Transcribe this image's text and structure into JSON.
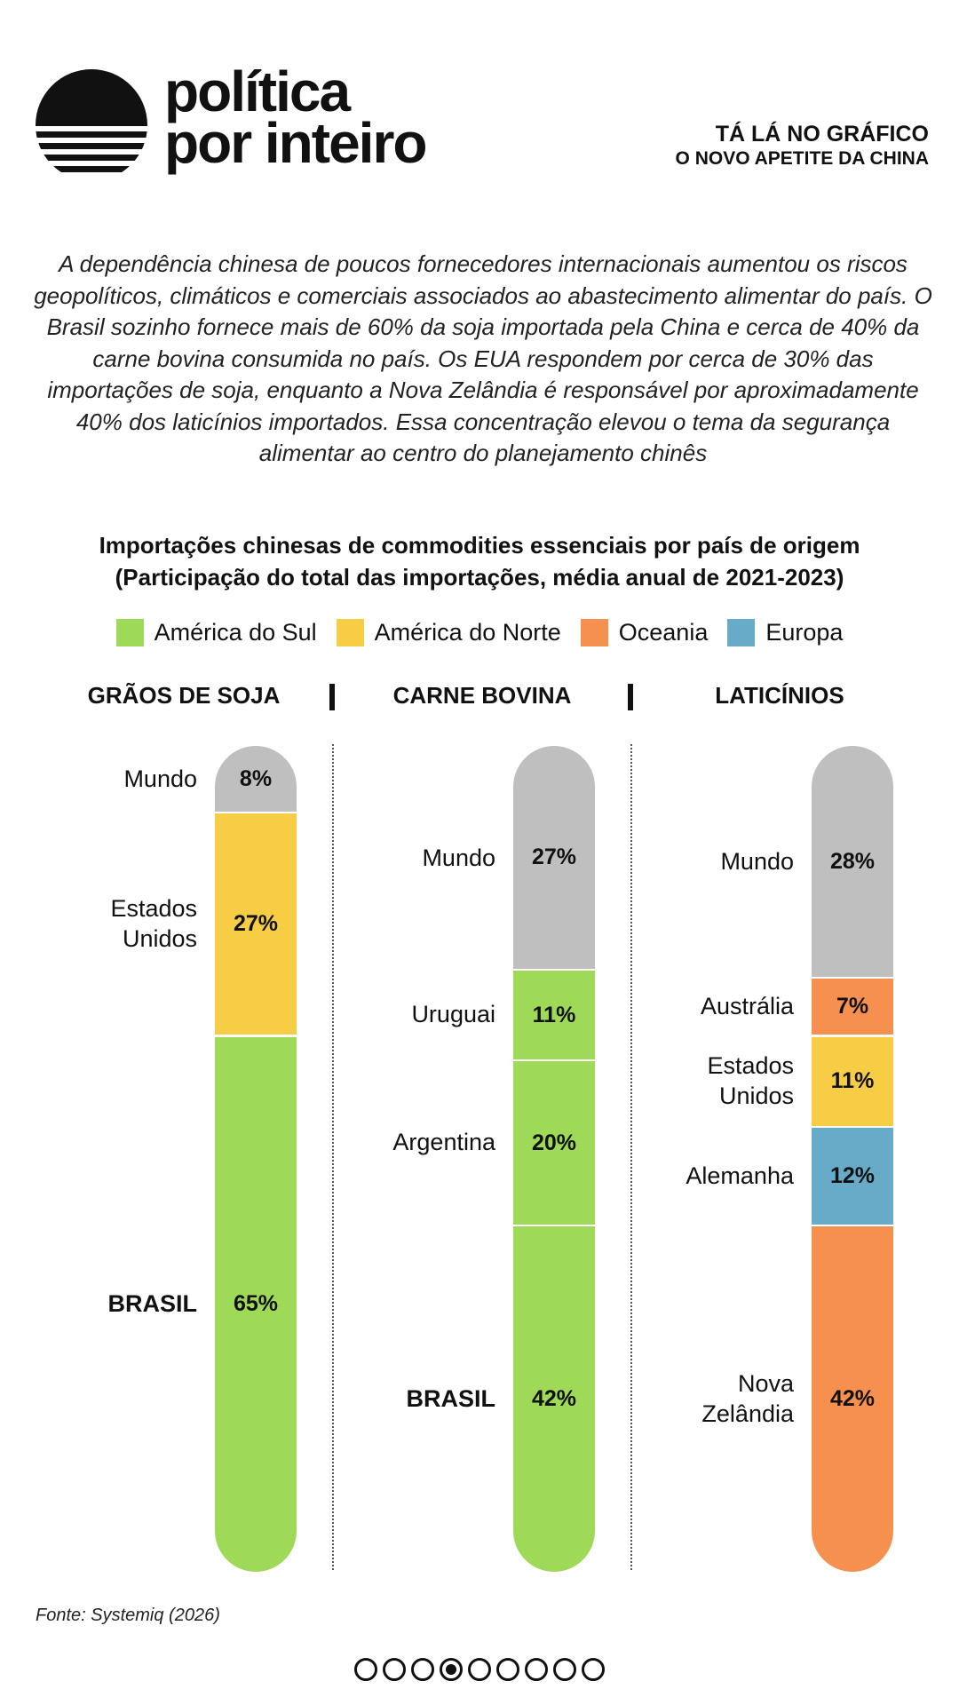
{
  "brand": {
    "line1": "política",
    "line2": "por inteiro"
  },
  "kicker": {
    "line1": "TÁ LÁ NO GRÁFICO",
    "line2": "O NOVO APETITE DA CHINA"
  },
  "intro": "A dependência chinesa de poucos fornecedores internacionais aumentou os riscos geopolíticos, climáticos e comerciais associados ao abastecimento alimentar do país. O Brasil sozinho fornece mais de 60% da soja importada pela China e cerca de 40% da carne bovina consumida no país. Os EUA respondem por cerca de 30% das importações de soja, enquanto a Nova Zelândia é responsável por aproximadamente 40% dos laticínios importados. Essa concentração elevou o tema da segurança alimentar ao centro do planejamento chinês",
  "chart_data": {
    "type": "bar",
    "stacked": true,
    "title": "Importações chinesas de commodities essenciais por país de origem",
    "subtitle": "(Participação do total das importações, média anual de 2021-2023)",
    "legend": [
      {
        "name": "América do Sul",
        "color": "#9ed957"
      },
      {
        "name": "América do Norte",
        "color": "#f7cd46"
      },
      {
        "name": "Oceania",
        "color": "#f6904e"
      },
      {
        "name": "Europa",
        "color": "#67abc9"
      }
    ],
    "legend_position": "top",
    "categories": [
      "GRÃOS DE SOJA",
      "CARNE BOVINA",
      "LATICÍNIOS"
    ],
    "groups": [
      {
        "category": "GRÃOS DE SOJA",
        "segments": [
          {
            "label": "Mundo",
            "value": 8,
            "display": "8%",
            "color": "#bfbfbf",
            "strong": false
          },
          {
            "label": "Estados Unidos",
            "lines": [
              "Estados",
              "Unidos"
            ],
            "value": 27,
            "display": "27%",
            "color": "#f7cd46",
            "strong": false
          },
          {
            "label": "BRASIL",
            "value": 65,
            "display": "65%",
            "color": "#9ed957",
            "strong": true
          }
        ]
      },
      {
        "category": "CARNE BOVINA",
        "segments": [
          {
            "label": "Mundo",
            "value": 27,
            "display": "27%",
            "color": "#bfbfbf",
            "strong": false
          },
          {
            "label": "Uruguai",
            "value": 11,
            "display": "11%",
            "color": "#9ed957",
            "strong": false
          },
          {
            "label": "Argentina",
            "value": 20,
            "display": "20%",
            "color": "#9ed957",
            "strong": false
          },
          {
            "label": "BRASIL",
            "value": 42,
            "display": "42%",
            "color": "#9ed957",
            "strong": true
          }
        ]
      },
      {
        "category": "LATICÍNIOS",
        "segments": [
          {
            "label": "Mundo",
            "value": 28,
            "display": "28%",
            "color": "#bfbfbf",
            "strong": false
          },
          {
            "label": "Austrália",
            "value": 7,
            "display": "7%",
            "color": "#f6904e",
            "strong": false
          },
          {
            "label": "Estados Unidos",
            "lines": [
              "Estados",
              "Unidos"
            ],
            "value": 11,
            "display": "11%",
            "color": "#f7cd46",
            "strong": false
          },
          {
            "label": "Alemanha",
            "value": 12,
            "display": "12%",
            "color": "#67abc9",
            "strong": false
          },
          {
            "label": "Nova Zelândia",
            "lines": [
              "Nova",
              "Zelândia"
            ],
            "value": 42,
            "display": "42%",
            "color": "#f6904e",
            "strong": false
          }
        ]
      }
    ]
  },
  "source": "Fonte: Systemiq (2026)",
  "pager": {
    "count": 9,
    "active": 4
  }
}
